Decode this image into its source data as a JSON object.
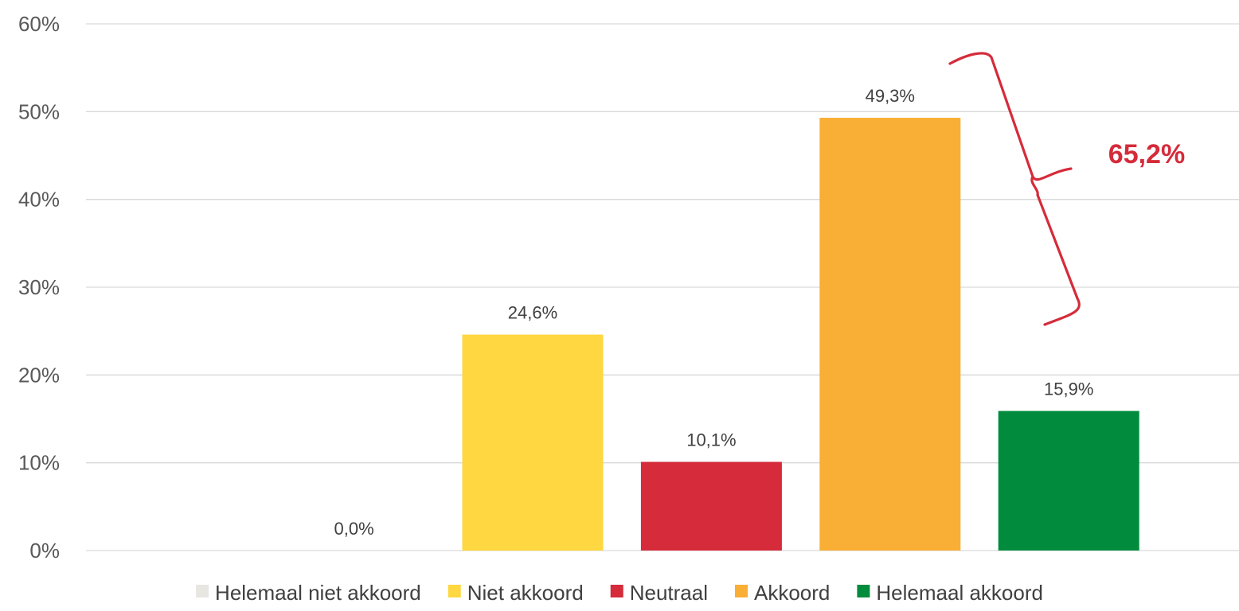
{
  "chart_data": {
    "type": "bar",
    "categories": [
      "Helemaal niet akkoord",
      "Niet akkoord",
      "Neutraal",
      "Akkoord",
      "Helemaal akkoord"
    ],
    "values": [
      0.0,
      24.6,
      10.1,
      49.3,
      15.9
    ],
    "data_labels": [
      "0,0%",
      "24,6%",
      "10,1%",
      "49,3%",
      "15,9%"
    ],
    "colors": [
      "#E7E6E1",
      "#FFD740",
      "#D52B3A",
      "#F9AE35",
      "#008C3C"
    ],
    "ylim": [
      0,
      60
    ],
    "y_ticks": [
      0,
      10,
      20,
      30,
      40,
      50,
      60
    ],
    "y_tick_labels": [
      "0%",
      "10%",
      "20%",
      "30%",
      "40%",
      "50%",
      "60%"
    ],
    "gridlines": true,
    "legend_position": "bottom",
    "title": "",
    "xlabel": "",
    "ylabel": "",
    "annotation": {
      "text": "65,2%",
      "color": "#D52B3A",
      "spans_categories": [
        "Akkoord",
        "Helemaal akkoord"
      ]
    }
  }
}
